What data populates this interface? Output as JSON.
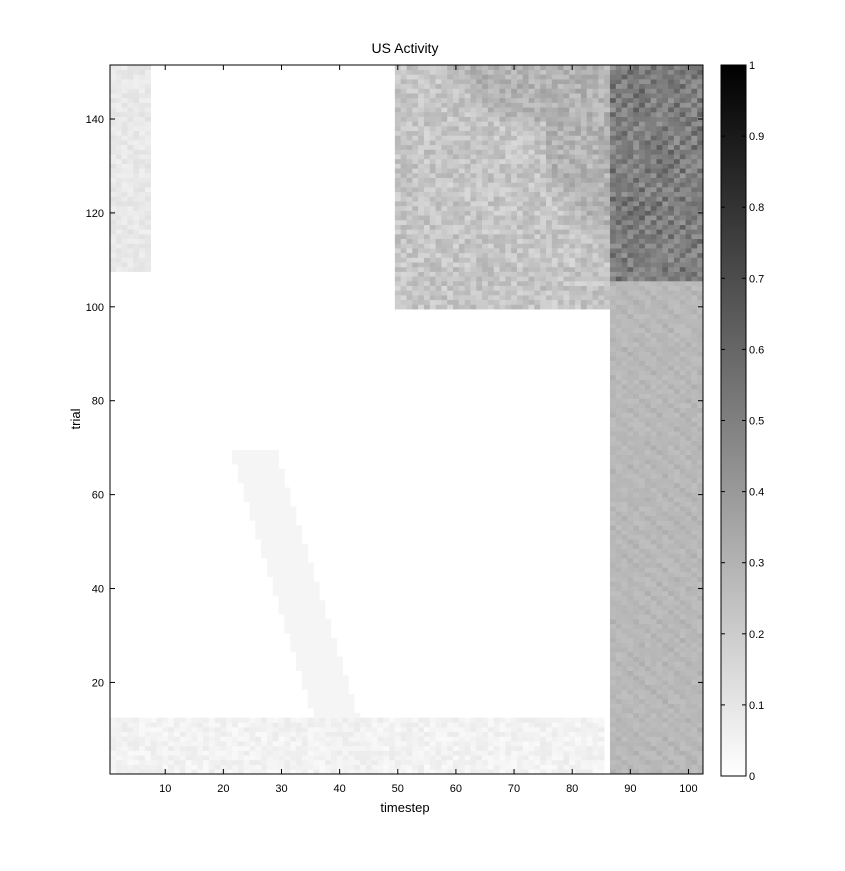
{
  "chart_data": {
    "type": "heatmap",
    "title": "US Activity",
    "xlabel": "timestep",
    "ylabel": "trial",
    "xlim": [
      0.5,
      102.5
    ],
    "ylim": [
      0.5,
      151.5
    ],
    "x_ticks": [
      10,
      20,
      30,
      40,
      50,
      60,
      70,
      80,
      90,
      100
    ],
    "y_ticks": [
      20,
      40,
      60,
      80,
      100,
      120,
      140
    ],
    "n_timesteps": 102,
    "n_trials": 151,
    "colorbar": {
      "range": [
        0,
        1
      ],
      "ticks": [
        0,
        0.1,
        0.2,
        0.3,
        0.4,
        0.5,
        0.6,
        0.7,
        0.8,
        0.9,
        1
      ],
      "colormap": "gray-reversed (0 = white, 1 = black)"
    },
    "grid": false,
    "regions": [
      {
        "description": "US-period column",
        "timestep_range": [
          87,
          102
        ],
        "trial_range": [
          1,
          105
        ],
        "value": 0.27
      },
      {
        "description": "US-period column after learning",
        "timestep_range": [
          87,
          102
        ],
        "trial_range": [
          106,
          151
        ],
        "value": 0.48
      },
      {
        "description": "anticipatory wedge",
        "timestep_range": [
          50,
          86
        ],
        "trial_range": [
          100,
          151
        ],
        "value": 0.25
      },
      {
        "description": "early faint block",
        "timestep_range": [
          1,
          7
        ],
        "trial_range": [
          108,
          151
        ],
        "value": 0.1
      },
      {
        "description": "background",
        "value": 0.01
      }
    ]
  }
}
